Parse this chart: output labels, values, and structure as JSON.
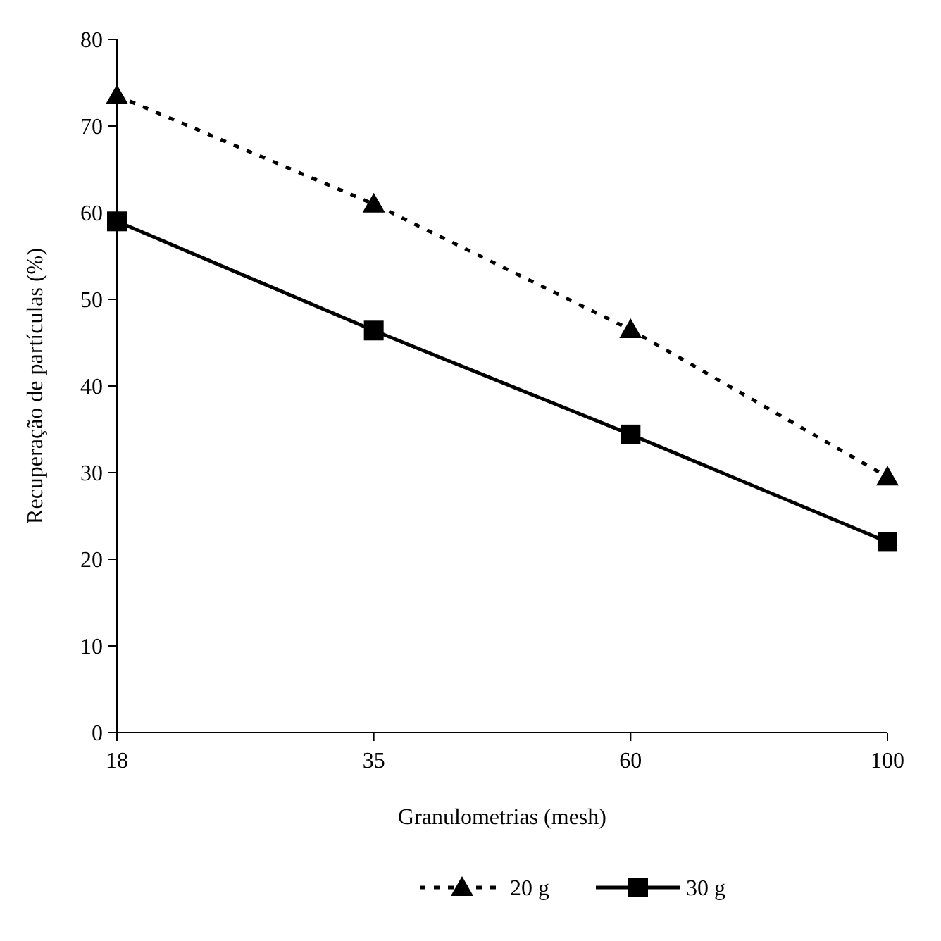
{
  "chart_data": {
    "type": "line",
    "xlabel": "Granulometrias (mesh)",
    "ylabel": "Recuperação de partículas (%)",
    "categories": [
      "18",
      "35",
      "60",
      "100"
    ],
    "ylim": [
      0,
      80
    ],
    "yticks": [
      0,
      10,
      20,
      30,
      40,
      50,
      60,
      70,
      80
    ],
    "legend": "bottom",
    "grid": false,
    "series": [
      {
        "name": "20 g",
        "color": "#000000",
        "values": [
          73.5,
          61,
          46.5,
          29.5
        ],
        "marker": "triangle",
        "line_style": "dotted"
      },
      {
        "name": "30 g",
        "color": "#000000",
        "values": [
          59,
          46.4,
          34.4,
          22
        ],
        "marker": "square",
        "line_style": "solid"
      }
    ]
  }
}
